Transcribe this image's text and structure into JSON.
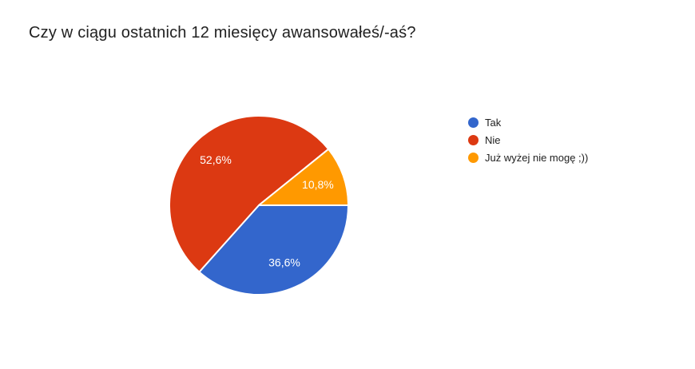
{
  "header": {
    "title": "Czy w ciągu ostatnich 12 miesięcy awansowałeś/-aś?"
  },
  "chart_data": {
    "type": "pie",
    "title": "Czy w ciągu ostatnich 12 miesięcy awansowałeś/-aś?",
    "start_angle_deg": 0,
    "direction": "clockwise",
    "legend_position": "right",
    "label_color": "#ffffff",
    "separator_color": "#ffffff",
    "slices": [
      {
        "label": "Tak",
        "value_pct": 36.6,
        "display": "36,6%",
        "color": "#3366CC"
      },
      {
        "label": "Nie",
        "value_pct": 52.6,
        "display": "52,6%",
        "color": "#DC3912"
      },
      {
        "label": "Już wyżej nie mogę ;))",
        "value_pct": 10.8,
        "display": "10,8%",
        "color": "#FF9900"
      }
    ]
  }
}
